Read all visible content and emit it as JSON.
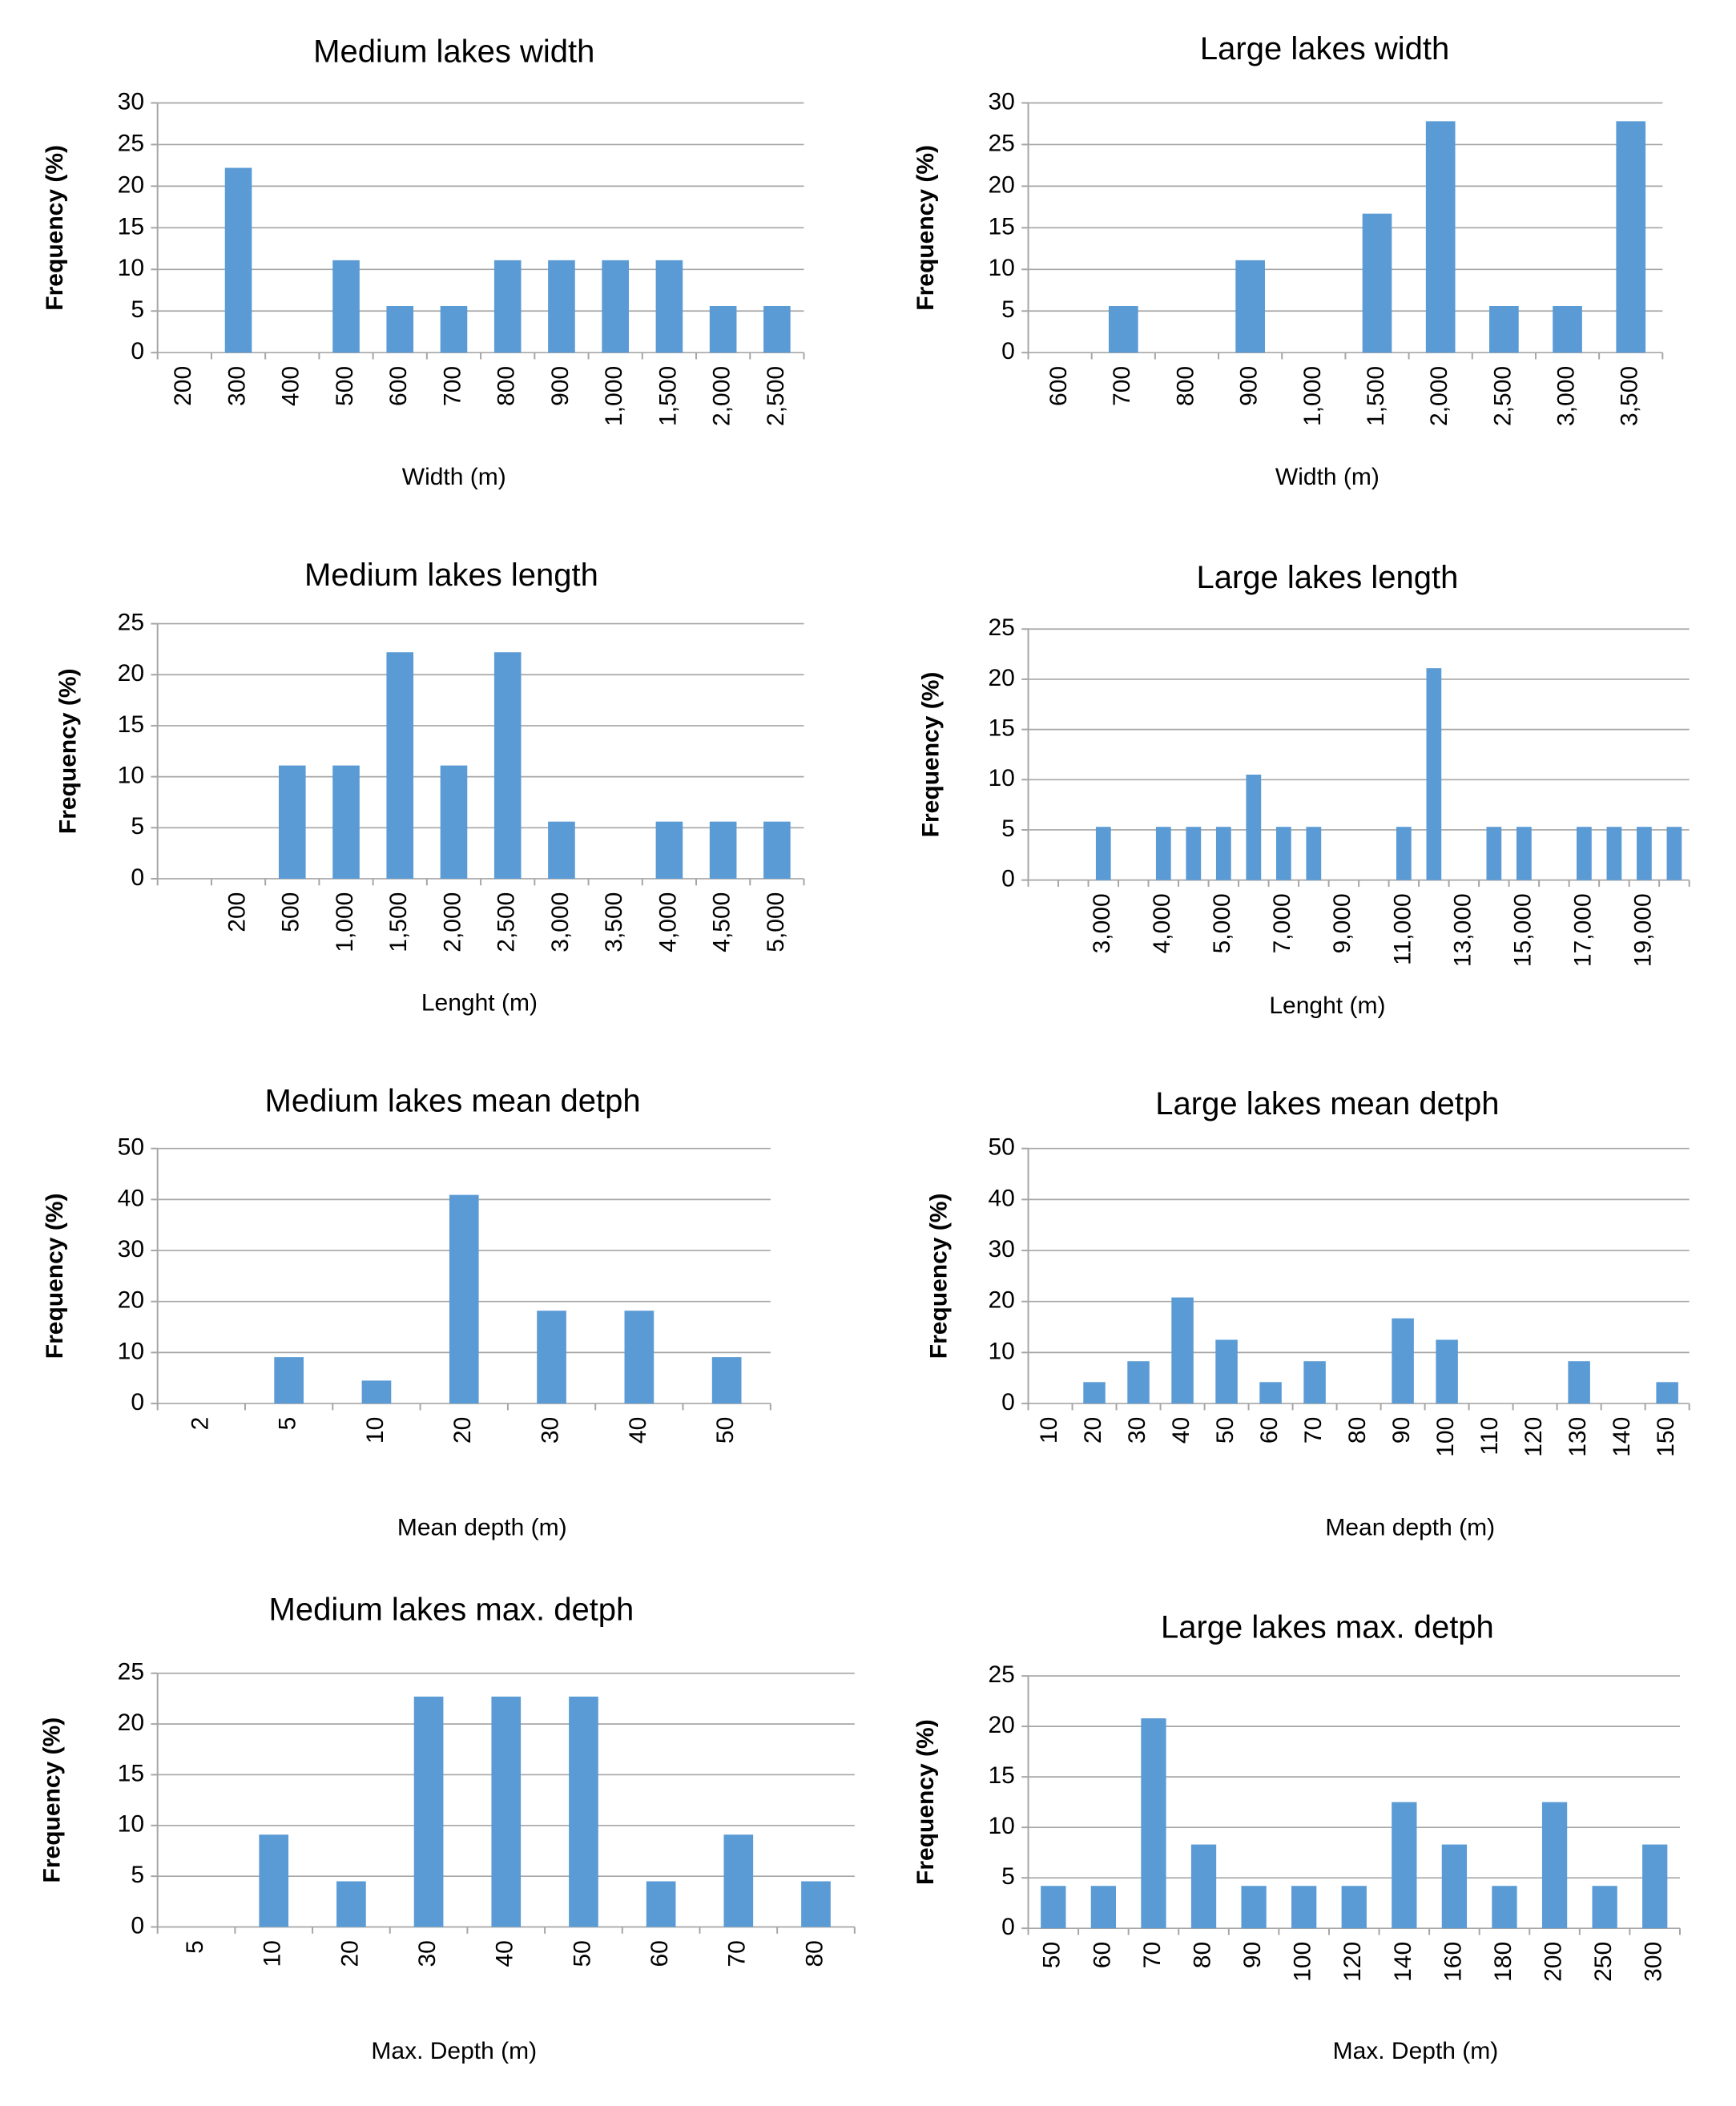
{
  "chart_data": [
    {
      "type": "bar",
      "title": "Medium lakes width",
      "x_label": "Width (m)",
      "y_label": "Frequency (%)",
      "categories": [
        "200",
        "300",
        "400",
        "500",
        "600",
        "700",
        "800",
        "900",
        "1,000",
        "1,500",
        "2,000",
        "2,500"
      ],
      "values": [
        0,
        22.2,
        0,
        11.1,
        5.6,
        5.6,
        11.1,
        11.1,
        11.1,
        11.1,
        5.6,
        5.6
      ],
      "color": "#5b9bd5",
      "ylim": [
        0,
        30
      ],
      "yticks": [
        0,
        5,
        10,
        15,
        20,
        25,
        30
      ],
      "grid": true
    },
    {
      "type": "bar",
      "title": "Large lakes width",
      "x_label": "Width (m)",
      "y_label": "Frequency (%)",
      "categories": [
        "600",
        "700",
        "800",
        "900",
        "1,000",
        "1,500",
        "2,000",
        "2,500",
        "3,000",
        "3,500"
      ],
      "values": [
        0,
        5.6,
        0,
        11.1,
        0,
        16.7,
        27.8,
        5.6,
        5.6,
        27.8
      ],
      "color": "#5b9bd5",
      "ylim": [
        0,
        30
      ],
      "yticks": [
        0,
        5,
        10,
        15,
        20,
        25,
        30
      ],
      "grid": true
    },
    {
      "type": "bar",
      "title": "Medium lakes length",
      "x_label": "Lenght (m)",
      "y_label": "Frequency (%)",
      "categories": [
        null,
        "200",
        "500",
        "1,000",
        "1,500",
        "2,000",
        "2,500",
        "3,000",
        "3,500",
        "4,000",
        "4,500",
        "5,000"
      ],
      "values": [
        0,
        0,
        11.1,
        11.1,
        22.2,
        11.1,
        22.2,
        5.6,
        0,
        5.6,
        5.6,
        5.6
      ],
      "color": "#5b9bd5",
      "ylim": [
        0,
        25
      ],
      "yticks": [
        0,
        5,
        10,
        15,
        20,
        25
      ],
      "grid": true
    },
    {
      "type": "bar",
      "title": "Large lakes length",
      "x_label": "Lenght (m)",
      "y_label": "Frequency (%)",
      "categories": [
        null,
        null,
        "3,000",
        null,
        "4,000",
        null,
        "5,000",
        null,
        "7,000",
        null,
        "9,000",
        null,
        "11,000",
        null,
        "13,000",
        null,
        "15,000",
        null,
        "17,000",
        null,
        "19,000",
        null
      ],
      "values": [
        0,
        0,
        5.3,
        0,
        5.3,
        5.3,
        5.3,
        10.5,
        5.3,
        5.3,
        0,
        0,
        5.3,
        21.1,
        0,
        5.3,
        5.3,
        0,
        5.3,
        5.3,
        5.3,
        5.3
      ],
      "color": "#5b9bd5",
      "ylim": [
        0,
        25
      ],
      "yticks": [
        0,
        5,
        10,
        15,
        20,
        25
      ],
      "grid": true
    },
    {
      "type": "bar",
      "title": "Medium lakes mean detph",
      "x_label": "Mean depth (m)",
      "y_label": "Frequency (%)",
      "categories": [
        "2",
        "5",
        "10",
        "20",
        "30",
        "40",
        "50"
      ],
      "values": [
        0,
        9.1,
        4.5,
        40.9,
        18.2,
        18.2,
        9.1
      ],
      "color": "#5b9bd5",
      "ylim": [
        0,
        50
      ],
      "yticks": [
        0,
        10,
        20,
        30,
        40,
        50
      ],
      "grid": true
    },
    {
      "type": "bar",
      "title": "Large lakes mean detph",
      "x_label": "Mean depth (m)",
      "y_label": "Frequency (%)",
      "categories": [
        "10",
        "20",
        "30",
        "40",
        "50",
        "60",
        "70",
        "80",
        "90",
        "100",
        "110",
        "120",
        "130",
        "140",
        "150"
      ],
      "values": [
        0,
        4.2,
        8.3,
        20.8,
        12.5,
        4.2,
        8.3,
        0,
        16.7,
        12.5,
        0,
        0,
        8.3,
        0,
        4.2
      ],
      "color": "#5b9bd5",
      "ylim": [
        0,
        50
      ],
      "yticks": [
        0,
        10,
        20,
        30,
        40,
        50
      ],
      "grid": true
    },
    {
      "type": "bar",
      "title": "Medium lakes max. detph",
      "x_label": "Max. Depth (m)",
      "y_label": "Frequency (%)",
      "categories": [
        "5",
        "10",
        "20",
        "30",
        "40",
        "50",
        "60",
        "70",
        "80"
      ],
      "values": [
        0,
        9.1,
        4.5,
        22.7,
        22.7,
        22.7,
        4.5,
        9.1,
        4.5
      ],
      "color": "#5b9bd5",
      "ylim": [
        0,
        25
      ],
      "yticks": [
        0,
        5,
        10,
        15,
        20,
        25
      ],
      "grid": true
    },
    {
      "type": "bar",
      "title": "Large lakes max. detph",
      "x_label": "Max. Depth (m)",
      "y_label": "Frequency (%)",
      "categories": [
        "50",
        "60",
        "70",
        "80",
        "90",
        "100",
        "120",
        "140",
        "160",
        "180",
        "200",
        "250",
        "300"
      ],
      "values": [
        4.2,
        4.2,
        20.8,
        8.3,
        4.2,
        4.2,
        4.2,
        12.5,
        8.3,
        4.2,
        12.5,
        4.2,
        8.3
      ],
      "color": "#5b9bd5",
      "ylim": [
        0,
        25
      ],
      "yticks": [
        0,
        5,
        10,
        15,
        20,
        25
      ],
      "grid": true
    }
  ]
}
